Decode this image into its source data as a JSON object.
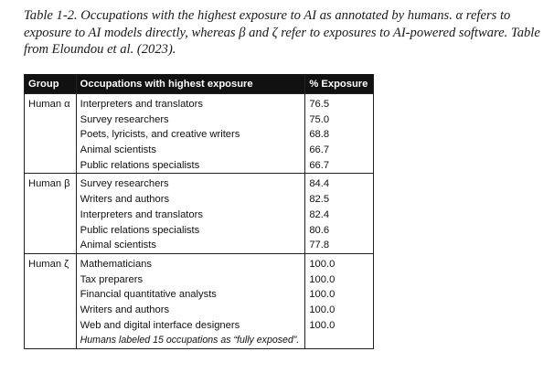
{
  "caption": "Table 1-2. Occupations with the highest exposure to AI as annotated by humans. α refers to exposure to AI models directly, whereas β and ζ refer to exposures to AI-powered software. Table from Eloundou et al. (2023).",
  "table": {
    "headers": [
      "Group",
      "Occupations with highest exposure",
      "% Exposure"
    ],
    "groups": [
      {
        "label": "Human α",
        "rows": [
          {
            "occupation": "Interpreters and translators",
            "exposure": "76.5"
          },
          {
            "occupation": "Survey researchers",
            "exposure": "75.0"
          },
          {
            "occupation": "Poets, lyricists, and creative writers",
            "exposure": "68.8"
          },
          {
            "occupation": "Animal scientists",
            "exposure": "66.7"
          },
          {
            "occupation": "Public relations specialists",
            "exposure": "66.7"
          }
        ]
      },
      {
        "label": "Human β",
        "rows": [
          {
            "occupation": "Survey researchers",
            "exposure": "84.4"
          },
          {
            "occupation": "Writers and authors",
            "exposure": "82.5"
          },
          {
            "occupation": "Interpreters and translators",
            "exposure": "82.4"
          },
          {
            "occupation": "Public relations specialists",
            "exposure": "80.6"
          },
          {
            "occupation": "Animal scientists",
            "exposure": "77.8"
          }
        ]
      },
      {
        "label": "Human ζ",
        "rows": [
          {
            "occupation": "Mathematicians",
            "exposure": "100.0"
          },
          {
            "occupation": "Tax preparers",
            "exposure": "100.0"
          },
          {
            "occupation": "Financial quantitative analysts",
            "exposure": "100.0"
          },
          {
            "occupation": "Writers and authors",
            "exposure": "100.0"
          },
          {
            "occupation": "Web and digital interface designers",
            "exposure": "100.0"
          }
        ],
        "note": "Humans labeled 15 occupations as “fully exposed”."
      }
    ]
  }
}
